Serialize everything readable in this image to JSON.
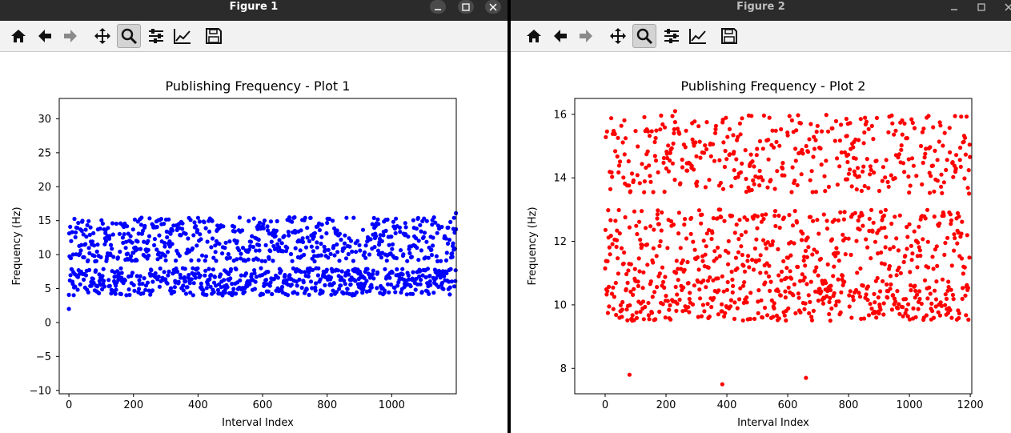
{
  "windows": [
    {
      "title": "Figure 1",
      "toolbar": [
        "home-icon",
        "back-arrow-icon",
        "forward-arrow-icon",
        "pan-move-icon",
        "zoom-magnifier-icon",
        "configure-subplots-icon",
        "edit-axis-curves-icon",
        "save-floppy-icon"
      ],
      "active_tool": "zoom-magnifier-icon"
    },
    {
      "title": "Figure 2",
      "toolbar": [
        "home-icon",
        "back-arrow-icon",
        "forward-arrow-icon",
        "pan-move-icon",
        "zoom-magnifier-icon",
        "configure-subplots-icon",
        "edit-axis-curves-icon",
        "save-floppy-icon"
      ],
      "active_tool": "zoom-magnifier-icon"
    }
  ],
  "chart_data": [
    {
      "type": "scatter",
      "title": "Publishing Frequency - Plot 1",
      "xlabel": "Interval Index",
      "ylabel": "Frequency (Hz)",
      "xlim": [
        -30,
        1200
      ],
      "ylim": [
        -10.5,
        33
      ],
      "xticks": [
        0,
        200,
        400,
        600,
        800,
        1000
      ],
      "yticks": [
        -10,
        -5,
        0,
        5,
        10,
        15,
        20,
        25,
        30
      ],
      "color": "#0000ff",
      "grid": false,
      "n_points": 1200,
      "bands": [
        {
          "low": 4.0,
          "high": 8.0
        },
        {
          "low": 9.0,
          "high": 15.5
        }
      ],
      "outliers": [
        {
          "x": 0,
          "y": 2.0
        },
        {
          "x": 1199,
          "y": 16.1
        }
      ]
    },
    {
      "type": "scatter",
      "title": "Publishing Frequency - Plot 2",
      "xlabel": "Interval Index",
      "ylabel": "Frequency (Hz)",
      "xlim": [
        -100,
        1205
      ],
      "ylim": [
        7.2,
        16.5
      ],
      "xticks": [
        0,
        200,
        400,
        600,
        800,
        1000,
        1200
      ],
      "yticks": [
        8,
        10,
        12,
        14,
        16
      ],
      "color": "#ff0000",
      "grid": false,
      "n_points": 1200,
      "bands": [
        {
          "low": 9.5,
          "high": 10.8
        },
        {
          "low": 10.8,
          "high": 13.0
        },
        {
          "low": 13.5,
          "high": 16.0
        }
      ],
      "outliers": [
        {
          "x": 230,
          "y": 16.1
        },
        {
          "x": 385,
          "y": 7.5
        },
        {
          "x": 80,
          "y": 7.8
        },
        {
          "x": 660,
          "y": 7.7
        }
      ]
    }
  ]
}
